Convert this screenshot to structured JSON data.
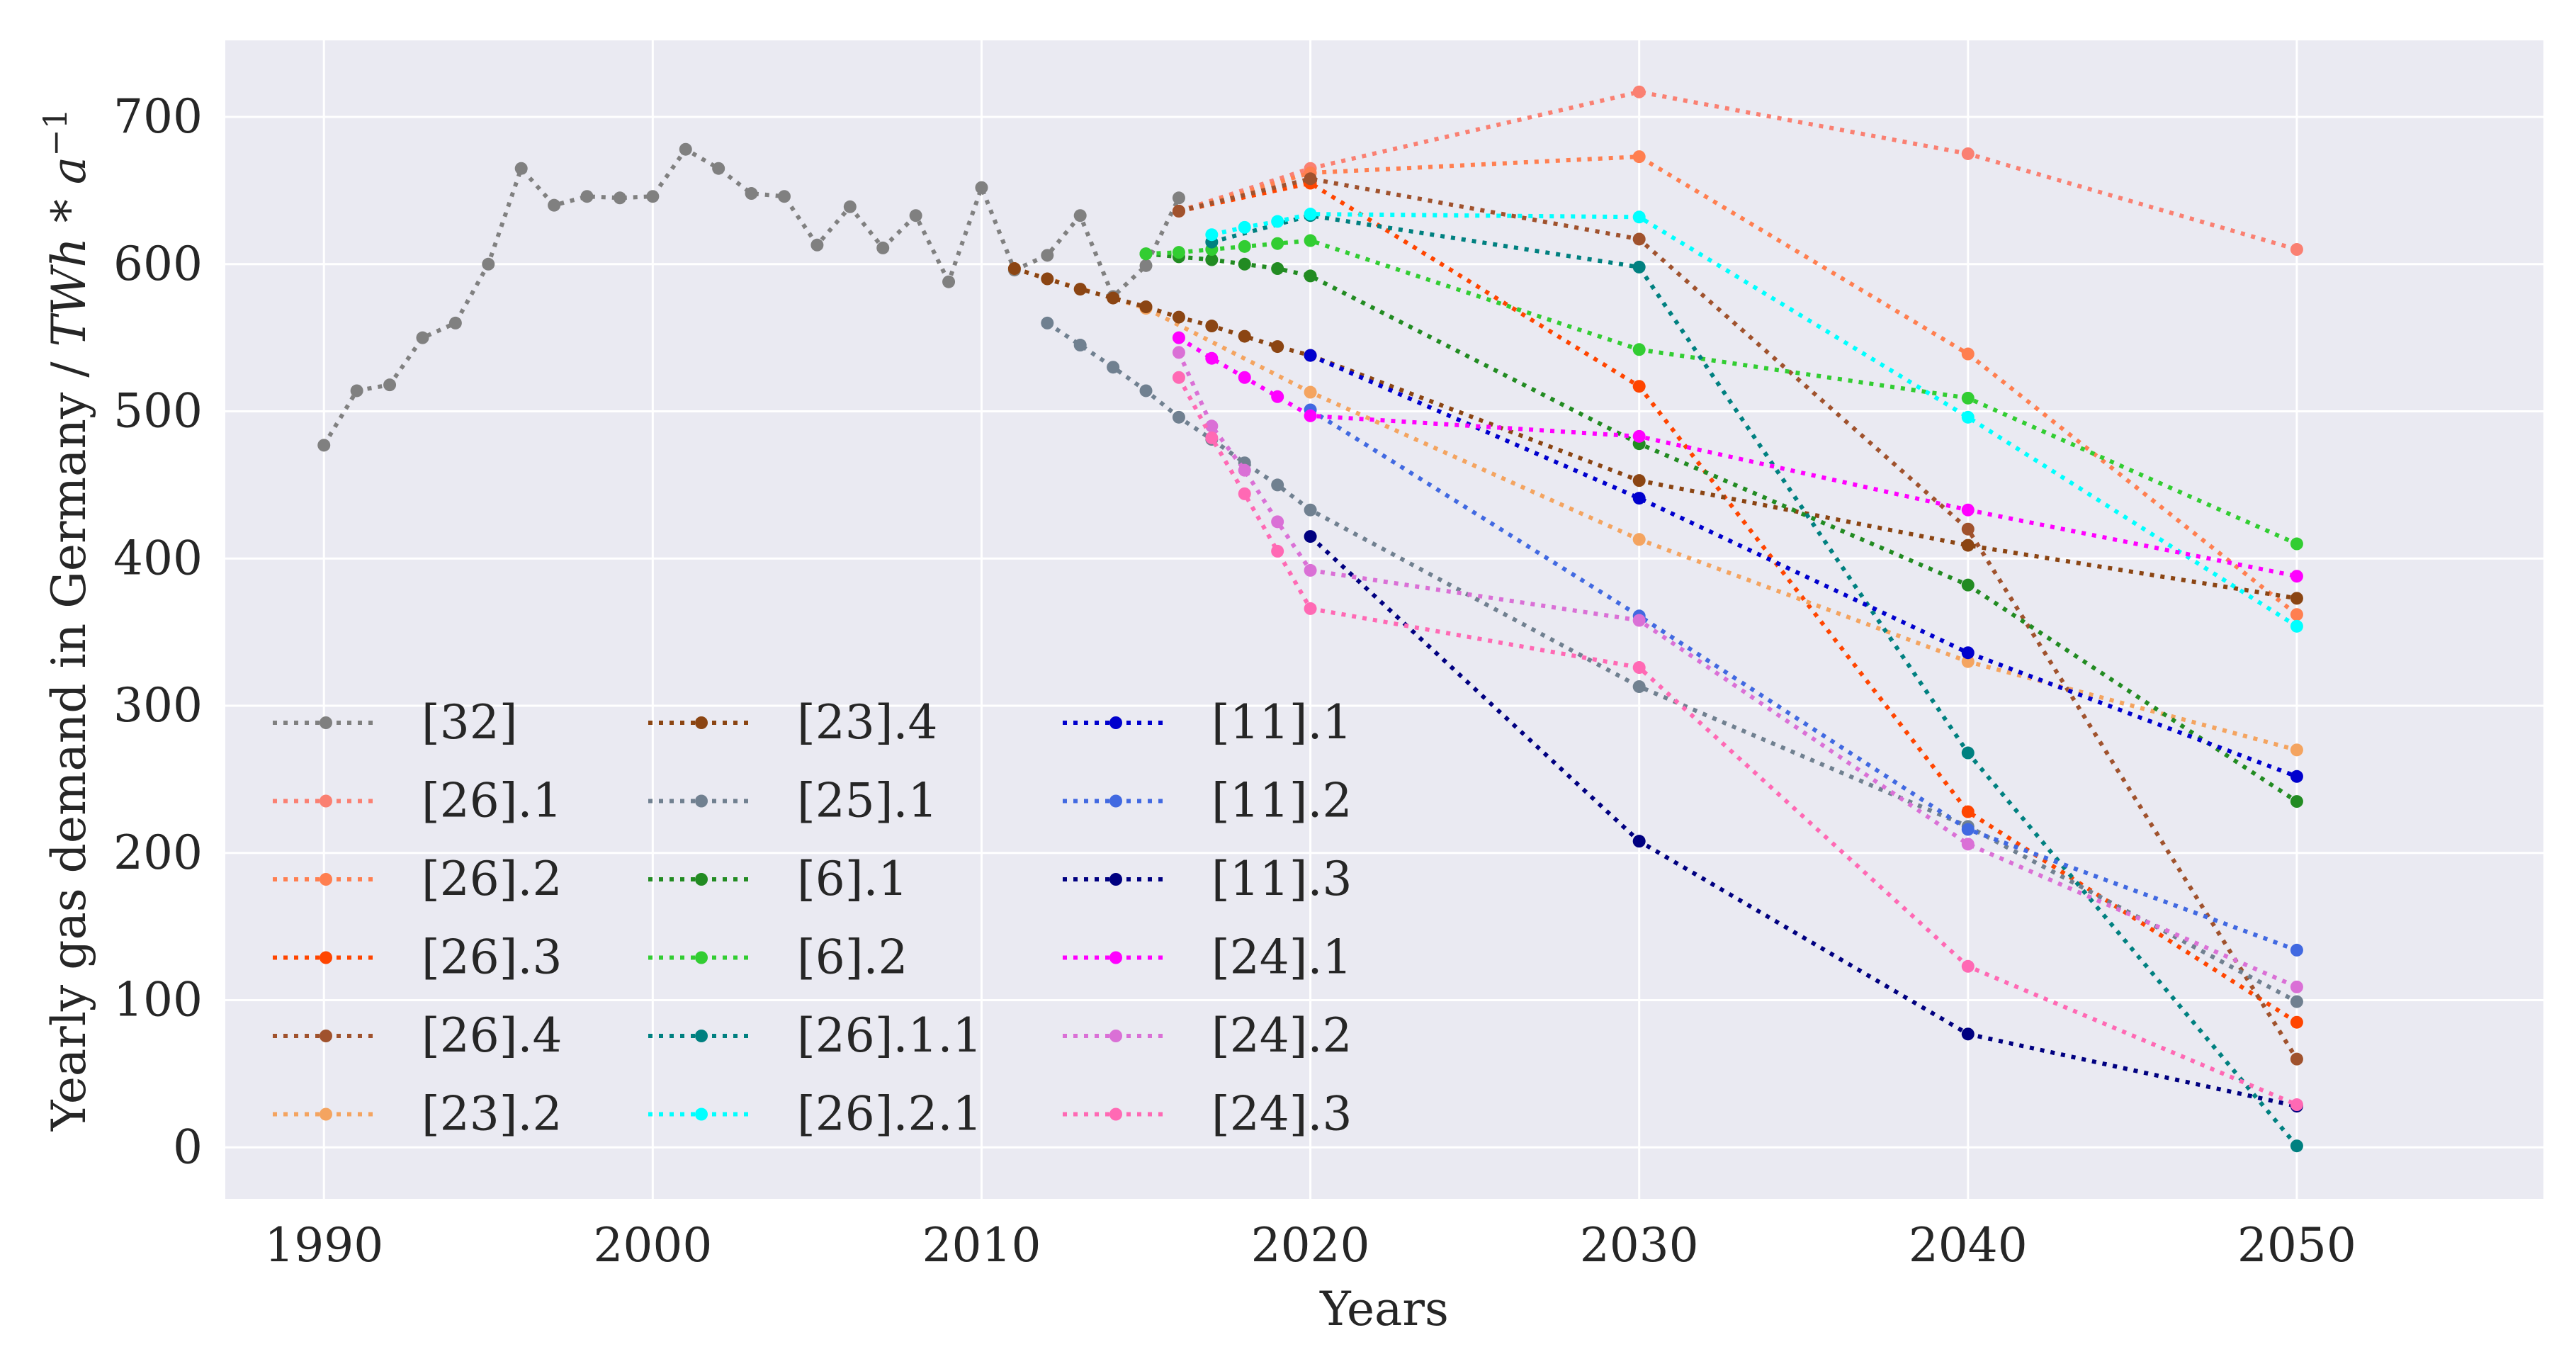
{
  "chart_data": {
    "type": "line",
    "title": "",
    "xlabel": "Years",
    "ylabel": "Yearly gas demand in Germany / ",
    "ylabel_unit": "TWh * a",
    "ylabel_unit_exponent": "−1",
    "xlim": [
      1987,
      2057.5
    ],
    "ylim": [
      -35,
      752
    ],
    "xticks": [
      1990,
      2000,
      2010,
      2020,
      2030,
      2040,
      2050
    ],
    "yticks": [
      0,
      100,
      200,
      300,
      400,
      500,
      600,
      700
    ],
    "grid": true,
    "legend_position": "lower-left",
    "legend_columns": 3,
    "series": [
      {
        "name": "[32]",
        "color": "#808080",
        "x": [
          1990,
          1991,
          1992,
          1993,
          1994,
          1995,
          1996,
          1997,
          1998,
          1999,
          2000,
          2001,
          2002,
          2003,
          2004,
          2005,
          2006,
          2007,
          2008,
          2009,
          2010,
          2011,
          2012,
          2013,
          2014,
          2015,
          2016
        ],
        "y": [
          477,
          514,
          518,
          550,
          560,
          600,
          665,
          640,
          646,
          645,
          646,
          678,
          665,
          648,
          646,
          613,
          639,
          611,
          633,
          588,
          652,
          596,
          606,
          633,
          578,
          599,
          645
        ]
      },
      {
        "name": "[26].1",
        "color": "#fa8072",
        "x": [
          2016,
          2020,
          2030,
          2040,
          2050
        ],
        "y": [
          636,
          665,
          717,
          675,
          610
        ]
      },
      {
        "name": "[26].2",
        "color": "#ff7f50",
        "x": [
          2016,
          2020,
          2030,
          2040,
          2050
        ],
        "y": [
          636,
          662,
          673,
          539,
          362
        ]
      },
      {
        "name": "[26].3",
        "color": "#ff4500",
        "x": [
          2016,
          2020,
          2030,
          2040,
          2050
        ],
        "y": [
          636,
          655,
          517,
          228,
          85
        ]
      },
      {
        "name": "[26].4",
        "color": "#a0522d",
        "x": [
          2016,
          2020,
          2030,
          2040,
          2050
        ],
        "y": [
          636,
          658,
          617,
          420,
          60
        ]
      },
      {
        "name": "[23].2",
        "color": "#f4a460",
        "x": [
          2011,
          2015,
          2020,
          2030,
          2040,
          2050
        ],
        "y": [
          597,
          570,
          513,
          413,
          330,
          270
        ]
      },
      {
        "name": "[23].4",
        "color": "#8b4513",
        "x": [
          2011,
          2012,
          2013,
          2014,
          2015,
          2016,
          2017,
          2018,
          2019,
          2020,
          2030,
          2040,
          2050
        ],
        "y": [
          597,
          590,
          583,
          577,
          571,
          564,
          558,
          551,
          544,
          538,
          453,
          409,
          373
        ]
      },
      {
        "name": "[25].1",
        "color": "#708090",
        "x": [
          2012,
          2013,
          2014,
          2015,
          2016,
          2017,
          2018,
          2019,
          2020,
          2030,
          2040,
          2050
        ],
        "y": [
          560,
          545,
          530,
          514,
          496,
          481,
          465,
          450,
          433,
          313,
          218,
          99
        ]
      },
      {
        "name": "[6].1",
        "color": "#228b22",
        "x": [
          2015,
          2016,
          2017,
          2018,
          2019,
          2020,
          2030,
          2040,
          2050
        ],
        "y": [
          607,
          605,
          603,
          600,
          597,
          592,
          478,
          382,
          235
        ]
      },
      {
        "name": "[6].2",
        "color": "#32cd32",
        "x": [
          2015,
          2016,
          2017,
          2018,
          2019,
          2020,
          2030,
          2040,
          2050
        ],
        "y": [
          607,
          608,
          610,
          612,
          614,
          616,
          542,
          509,
          410
        ]
      },
      {
        "name": "[26].1.1",
        "color": "#008080",
        "x": [
          2017,
          2020,
          2030,
          2040,
          2050
        ],
        "y": [
          615,
          633,
          598,
          268,
          1
        ]
      },
      {
        "name": "[26].2.1",
        "color": "#00ffff",
        "x": [
          2017,
          2018,
          2019,
          2020,
          2030,
          2040,
          2050
        ],
        "y": [
          620,
          625,
          629,
          634,
          632,
          496,
          354
        ]
      },
      {
        "name": "[11].1",
        "color": "#0000cd",
        "x": [
          2020,
          2030,
          2040,
          2050
        ],
        "y": [
          538,
          441,
          336,
          252
        ]
      },
      {
        "name": "[11].2",
        "color": "#4169e1",
        "x": [
          2020,
          2030,
          2040,
          2050
        ],
        "y": [
          501,
          361,
          216,
          134
        ]
      },
      {
        "name": "[11].3",
        "color": "#000080",
        "x": [
          2020,
          2030,
          2040,
          2050
        ],
        "y": [
          415,
          208,
          77,
          28
        ]
      },
      {
        "name": "[24].1",
        "color": "#ff00ff",
        "x": [
          2016,
          2017,
          2018,
          2019,
          2020,
          2030,
          2040,
          2050
        ],
        "y": [
          550,
          536,
          523,
          510,
          497,
          483,
          433,
          388
        ]
      },
      {
        "name": "[24].2",
        "color": "#da70d6",
        "x": [
          2016,
          2017,
          2018,
          2019,
          2020,
          2030,
          2040,
          2050
        ],
        "y": [
          540,
          490,
          460,
          425,
          392,
          358,
          206,
          109
        ]
      },
      {
        "name": "[24].3",
        "color": "#ff69b4",
        "x": [
          2016,
          2017,
          2018,
          2019,
          2020,
          2030,
          2040,
          2050
        ],
        "y": [
          523,
          482,
          444,
          405,
          366,
          326,
          123,
          29
        ]
      }
    ]
  }
}
